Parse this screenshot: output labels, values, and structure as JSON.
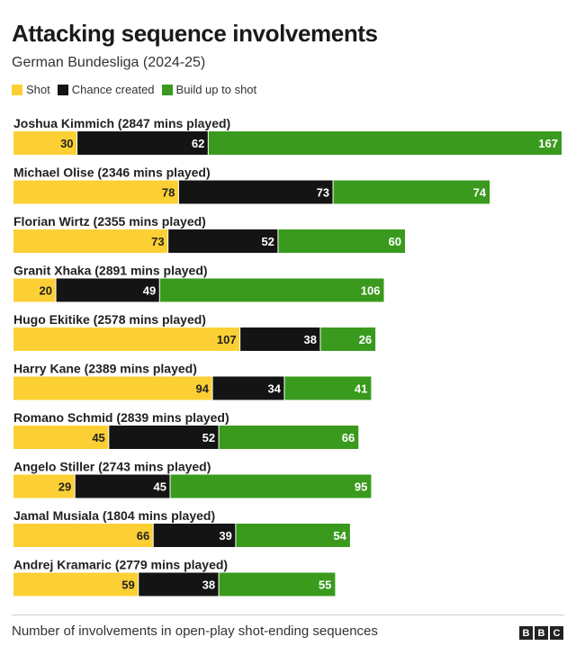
{
  "title": "Attacking sequence involvements",
  "subtitle": "German Bundesliga (2024-25)",
  "footer": {
    "note": "Number of involvements in open-play shot-ending sequences",
    "logo_letters": [
      "B",
      "B",
      "C"
    ]
  },
  "colors": {
    "shot": "#fcd034",
    "chance_created": "#141414",
    "build_up": "#3a9a1e"
  },
  "chart_data": {
    "type": "bar",
    "orientation": "horizontal",
    "stacked": true,
    "title": "Attacking sequence involvements",
    "subtitle": "German Bundesliga (2024-25)",
    "xlim": [
      0,
      259
    ],
    "grid": false,
    "legend_position": "top-left",
    "categories": [
      "Joshua Kimmich (2847 mins played)",
      "Michael Olise (2346 mins played)",
      "Florian Wirtz (2355 mins played)",
      "Granit Xhaka (2891 mins played)",
      "Hugo Ekitike (2578 mins played)",
      "Harry Kane (2389 mins played)",
      "Romano Schmid (2839 mins played)",
      "Angelo Stiller (2743 mins played)",
      "Jamal Musiala (1804 mins played)",
      "Andrej Kramaric (2779 mins played)"
    ],
    "series": [
      {
        "name": "Shot",
        "color": "#fcd034",
        "values": [
          30,
          78,
          73,
          20,
          107,
          94,
          45,
          29,
          66,
          59
        ]
      },
      {
        "name": "Chance created",
        "color": "#141414",
        "values": [
          62,
          73,
          52,
          49,
          38,
          34,
          52,
          45,
          39,
          38
        ]
      },
      {
        "name": "Build up to shot",
        "color": "#3a9a1e",
        "values": [
          167,
          74,
          60,
          106,
          26,
          41,
          66,
          95,
          54,
          55
        ]
      }
    ]
  }
}
